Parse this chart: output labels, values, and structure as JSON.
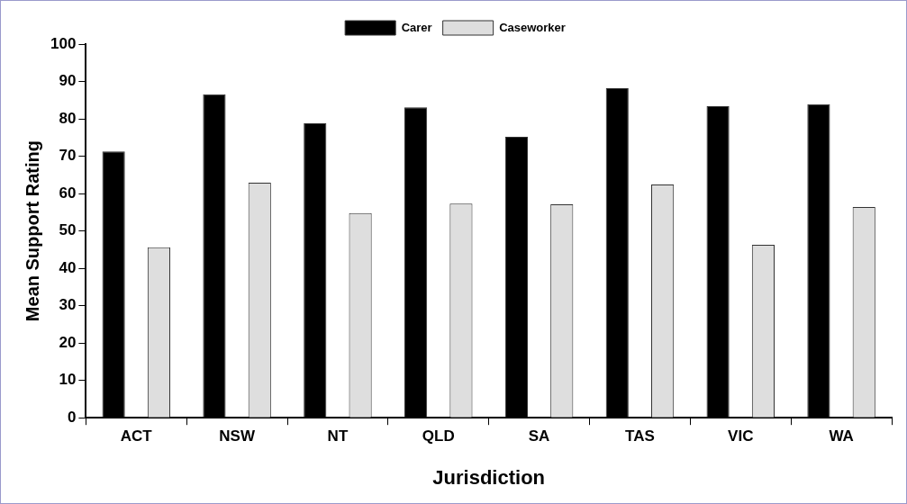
{
  "chart_data": {
    "type": "bar",
    "xlabel": "Jurisdiction",
    "ylabel": "Mean Support Rating",
    "categories": [
      "ACT",
      "NSW",
      "NT",
      "QLD",
      "SA",
      "TAS",
      "VIC",
      "WA"
    ],
    "series": [
      {
        "name": "Carer",
        "color": "#000000",
        "values": [
          71.3,
          86.6,
          78.8,
          83.1,
          75.2,
          88.2,
          83.4,
          83.9
        ]
      },
      {
        "name": "Caseworker",
        "color": "#dedede",
        "values": [
          45.6,
          62.9,
          54.8,
          57.3,
          57.1,
          62.4,
          46.3,
          56.4
        ]
      }
    ],
    "ylim": [
      0,
      100
    ],
    "yticks": [
      0,
      10,
      20,
      30,
      40,
      50,
      60,
      70,
      80,
      90,
      100
    ],
    "grid": false,
    "legend": "top"
  }
}
